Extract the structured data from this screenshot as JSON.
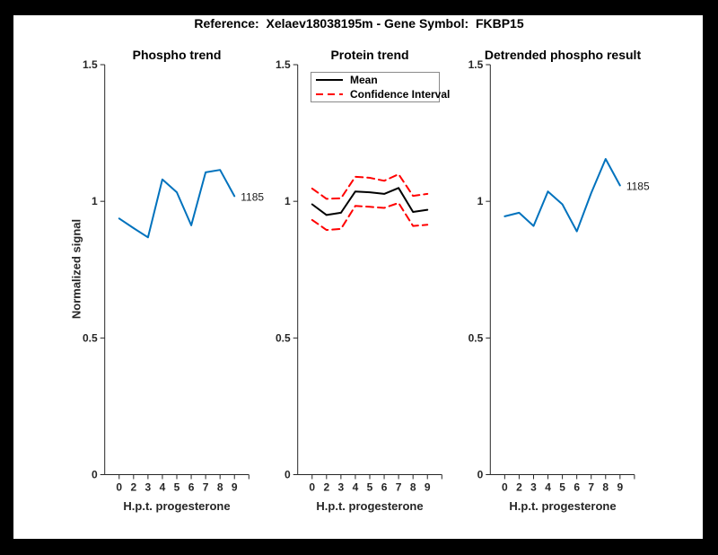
{
  "figure": {
    "title": "Reference:  Xelaev18038195m - Gene Symbol:  FKBP15"
  },
  "colors": {
    "line_blue": "#0072BD",
    "mean_black": "#000000",
    "ci_red": "#FF0000",
    "axis": "#262626",
    "figure_bg": "#FFFFFF",
    "page_bg": "#000000"
  },
  "legend": {
    "mean_label": "Mean",
    "ci_label": "Confidence Interval"
  },
  "chart_data": [
    {
      "type": "line",
      "title": "Phospho trend",
      "xlabel": "H.p.t. progesterone",
      "ylabel": "Normalized signal",
      "categories": [
        "0",
        "2",
        "3",
        "4",
        "5",
        "6",
        "7",
        "8",
        "9"
      ],
      "ylim": [
        0,
        1.5
      ],
      "yticks": [
        0,
        0.5,
        1,
        1.5
      ],
      "ytick_labels": [
        "0",
        "0.5",
        "1",
        "1.5"
      ],
      "grid": false,
      "legend": null,
      "series": [
        {
          "name": "Phospho signal 1185",
          "color": "#0072BD",
          "dash": false,
          "values": [
            0.937,
            0.902,
            0.868,
            1.08,
            1.033,
            0.912,
            1.106,
            1.115,
            1.019
          ],
          "end_label": "1185"
        }
      ]
    },
    {
      "type": "line",
      "title": "Protein trend",
      "xlabel": "H.p.t. progesterone",
      "ylabel": "",
      "categories": [
        "0",
        "2",
        "3",
        "4",
        "5",
        "6",
        "7",
        "8",
        "9"
      ],
      "ylim": [
        0,
        1.5
      ],
      "yticks": [
        0,
        0.5,
        1,
        1.5
      ],
      "ytick_labels": [
        "0",
        "0.5",
        "1",
        "1.5"
      ],
      "grid": false,
      "legend": {
        "position": "top-left",
        "entries": [
          "Mean",
          "Confidence Interval"
        ]
      },
      "series": [
        {
          "name": "Mean",
          "color": "#000000",
          "dash": false,
          "values": [
            0.989,
            0.95,
            0.958,
            1.036,
            1.033,
            1.027,
            1.049,
            0.961,
            0.969
          ],
          "end_label": null
        },
        {
          "name": "Confidence Interval upper",
          "color": "#FF0000",
          "dash": true,
          "values": [
            1.047,
            1.009,
            1.011,
            1.09,
            1.086,
            1.075,
            1.099,
            1.02,
            1.027
          ],
          "end_label": null
        },
        {
          "name": "Confidence Interval lower",
          "color": "#FF0000",
          "dash": true,
          "values": [
            0.932,
            0.895,
            0.899,
            0.983,
            0.98,
            0.976,
            0.994,
            0.91,
            0.914
          ],
          "end_label": null
        }
      ]
    },
    {
      "type": "line",
      "title": "Detrended phospho result",
      "xlabel": "H.p.t. progesterone",
      "ylabel": "",
      "categories": [
        "0",
        "2",
        "3",
        "4",
        "5",
        "6",
        "7",
        "8",
        "9"
      ],
      "ylim": [
        0,
        1.5
      ],
      "yticks": [
        0,
        0.5,
        1,
        1.5
      ],
      "ytick_labels": [
        "0",
        "0.5",
        "1",
        "1.5"
      ],
      "grid": false,
      "legend": null,
      "series": [
        {
          "name": "Detrended phospho signal 1185",
          "color": "#0072BD",
          "dash": false,
          "values": [
            0.945,
            0.958,
            0.91,
            1.036,
            0.989,
            0.89,
            1.03,
            1.155,
            1.058
          ],
          "end_label": "1185"
        }
      ]
    }
  ]
}
